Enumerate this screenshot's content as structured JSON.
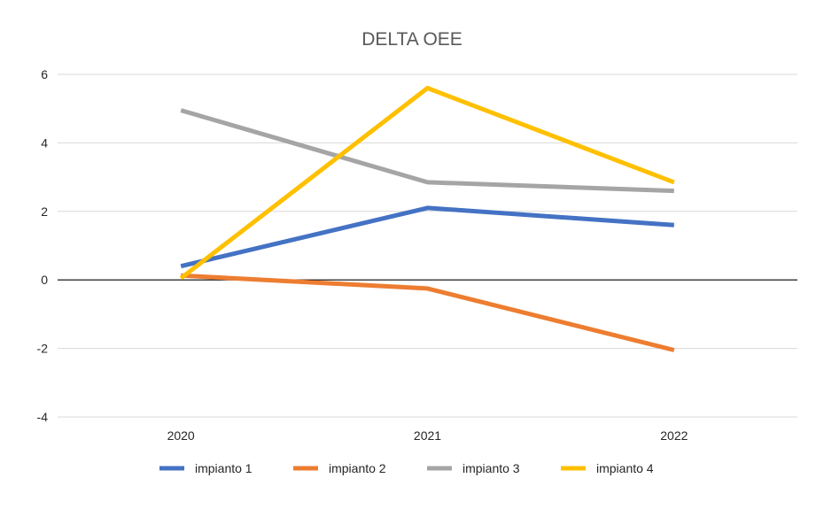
{
  "chart_data": {
    "type": "line",
    "title": "DELTA OEE",
    "xlabel": "",
    "ylabel": "",
    "categories": [
      "2020",
      "2021",
      "2022"
    ],
    "ylim": [
      -4,
      6
    ],
    "yticks": [
      -4,
      -2,
      0,
      2,
      4,
      6
    ],
    "grid": true,
    "legend_position": "bottom",
    "series": [
      {
        "name": "impianto 1",
        "color": "#4472c4",
        "values": [
          0.4,
          2.1,
          1.6
        ]
      },
      {
        "name": "impianto 2",
        "color": "#ed7d31",
        "values": [
          0.13,
          -0.25,
          -2.05
        ]
      },
      {
        "name": "impianto 3",
        "color": "#a5a5a5",
        "values": [
          4.95,
          2.85,
          2.6
        ]
      },
      {
        "name": "impianto 4",
        "color": "#ffc000",
        "values": [
          0.05,
          5.6,
          2.85
        ]
      }
    ]
  }
}
